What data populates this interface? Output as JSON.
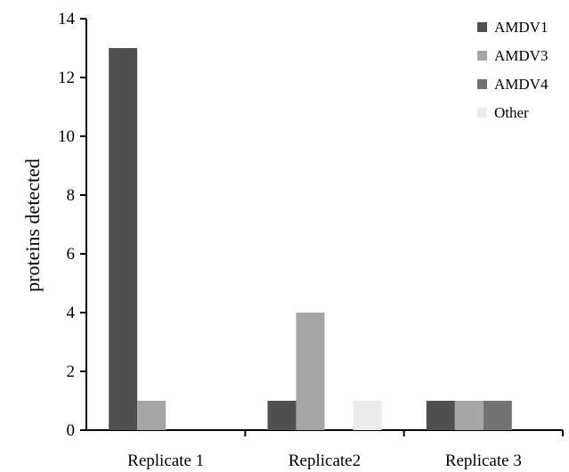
{
  "chart_data": {
    "type": "bar",
    "title": "",
    "xlabel": "",
    "ylabel": "proteins detected",
    "ylim": [
      0,
      14
    ],
    "yticks": [
      0,
      2,
      4,
      6,
      8,
      10,
      12,
      14
    ],
    "grid": false,
    "legend_position": "top-right",
    "categories": [
      "Replicate 1",
      "Replicate2",
      "Replicate 3"
    ],
    "series": [
      {
        "name": "AMDV1",
        "color": "#505050",
        "values": [
          13,
          1,
          1
        ]
      },
      {
        "name": "AMDV3",
        "color": "#a6a6a6",
        "values": [
          1,
          4,
          1
        ]
      },
      {
        "name": "AMDV4",
        "color": "#737373",
        "values": [
          0,
          0,
          1
        ]
      },
      {
        "name": "Other",
        "color": "#ebebeb",
        "values": [
          0,
          1,
          0
        ]
      }
    ]
  }
}
